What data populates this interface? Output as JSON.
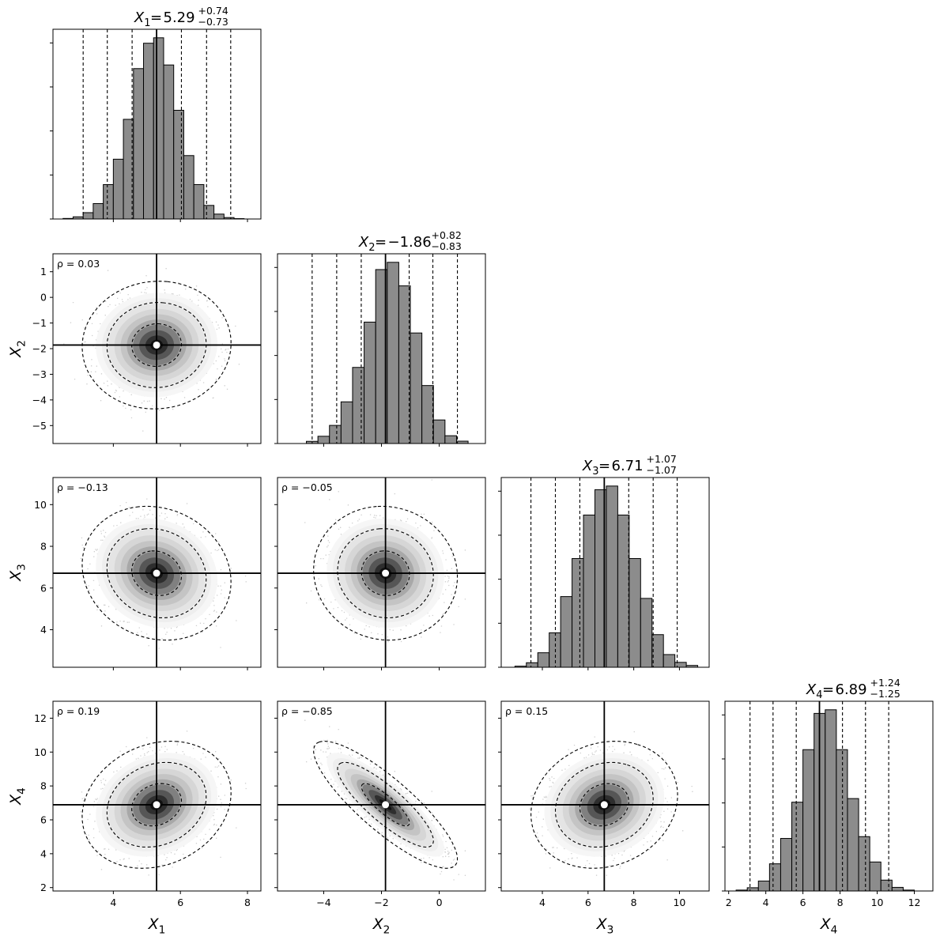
{
  "chart_data": {
    "type": "corner",
    "parameters": [
      {
        "symbol": "X",
        "subscript": "1",
        "median": "5.29",
        "plus": "+0.74",
        "minus": "−0.73",
        "median_value": 5.29,
        "xlim": [
          2.2,
          8.4
        ],
        "ticks": [
          4,
          6,
          8
        ],
        "tick_labels": [
          "4",
          "6",
          "8"
        ],
        "quantile_lines": [
          3.1,
          3.82,
          4.56,
          6.03,
          6.78,
          7.5
        ],
        "hist": [
          0.003,
          0.012,
          0.035,
          0.085,
          0.19,
          0.33,
          0.55,
          0.83,
          0.97,
          1.0,
          0.85,
          0.6,
          0.35,
          0.19,
          0.075,
          0.027,
          0.008,
          0.002
        ],
        "hist_range": [
          2.5,
          7.9
        ]
      },
      {
        "symbol": "X",
        "subscript": "2",
        "median": "−1.86",
        "plus": "+0.82",
        "minus": "−0.83",
        "median_value": -1.86,
        "xlim": [
          -5.6,
          1.6
        ],
        "ticks": [
          -4,
          -2,
          0
        ],
        "tick_labels": [
          "−4",
          "−2",
          "0"
        ],
        "ylim": [
          -5.7,
          1.7
        ],
        "yticks": [
          1,
          0,
          -1,
          -2,
          -3,
          -4,
          -5
        ],
        "ytick_labels": [
          "1",
          "0",
          "−1",
          "−2",
          "−3",
          "−4",
          "−5"
        ],
        "quantile_lines": [
          -4.4,
          -3.55,
          -2.7,
          -1.04,
          -0.22,
          0.63
        ],
        "hist": [
          0.012,
          0.04,
          0.1,
          0.23,
          0.42,
          0.67,
          0.96,
          1.0,
          0.87,
          0.61,
          0.32,
          0.13,
          0.043,
          0.013
        ],
        "hist_range": [
          -4.6,
          1.0
        ]
      },
      {
        "symbol": "X",
        "subscript": "3",
        "median": "6.71",
        "plus": "+1.07",
        "minus": "−1.07",
        "median_value": 6.71,
        "xlim": [
          2.2,
          11.3
        ],
        "ticks": [
          4,
          6,
          8,
          10
        ],
        "tick_labels": [
          "4",
          "6",
          "8",
          "10"
        ],
        "ylim": [
          2.2,
          11.3
        ],
        "yticks": [
          10,
          8,
          6,
          4
        ],
        "ytick_labels": [
          "10",
          "8",
          "6",
          "4"
        ],
        "quantile_lines": [
          3.5,
          4.57,
          5.64,
          7.78,
          8.85,
          9.9
        ],
        "hist": [
          0.006,
          0.025,
          0.08,
          0.19,
          0.39,
          0.6,
          0.84,
          0.98,
          1.0,
          0.84,
          0.6,
          0.38,
          0.18,
          0.07,
          0.027,
          0.01
        ],
        "hist_range": [
          2.8,
          10.8
        ]
      },
      {
        "symbol": "X",
        "subscript": "4",
        "median": "6.89",
        "plus": "+1.24",
        "minus": "−1.25",
        "median_value": 6.89,
        "xlim": [
          1.8,
          13.0
        ],
        "ticks": [
          2,
          4,
          6,
          8,
          10,
          12
        ],
        "tick_labels": [
          "2",
          "4",
          "6",
          "8",
          "10",
          "12"
        ],
        "ylim": [
          1.8,
          13.0
        ],
        "yticks": [
          12,
          10,
          8,
          6,
          4,
          2
        ],
        "ytick_labels": [
          "12",
          "10",
          "8",
          "6",
          "4",
          "2"
        ],
        "quantile_lines": [
          3.15,
          4.39,
          5.64,
          8.13,
          9.37,
          10.62
        ],
        "hist": [
          0.005,
          0.018,
          0.055,
          0.15,
          0.29,
          0.49,
          0.78,
          0.98,
          1.0,
          0.78,
          0.51,
          0.3,
          0.16,
          0.06,
          0.02,
          0.005
        ],
        "hist_range": [
          2.4,
          12.0
        ]
      }
    ],
    "pairs": [
      {
        "row": 1,
        "col": 0,
        "rho": "ρ = 0.03",
        "rho_value": 0.03,
        "sd_x": 0.74,
        "sd_y": 0.83
      },
      {
        "row": 2,
        "col": 0,
        "rho": "ρ = −0.13",
        "rho_value": -0.13,
        "sd_x": 0.74,
        "sd_y": 1.07
      },
      {
        "row": 2,
        "col": 1,
        "rho": "ρ = −0.05",
        "rho_value": -0.05,
        "sd_x": 0.83,
        "sd_y": 1.07
      },
      {
        "row": 3,
        "col": 0,
        "rho": "ρ = 0.19",
        "rho_value": 0.19,
        "sd_x": 0.74,
        "sd_y": 1.25
      },
      {
        "row": 3,
        "col": 1,
        "rho": "ρ = −0.85",
        "rho_value": -0.85,
        "sd_x": 0.83,
        "sd_y": 1.25
      },
      {
        "row": 3,
        "col": 2,
        "rho": "ρ = 0.15",
        "rho_value": 0.15,
        "sd_x": 1.07,
        "sd_y": 1.25
      }
    ],
    "x_axis_labels": [
      {
        "symbol": "X",
        "subscript": "1"
      },
      {
        "symbol": "X",
        "subscript": "2"
      },
      {
        "symbol": "X",
        "subscript": "3"
      },
      {
        "symbol": "X",
        "subscript": "4"
      }
    ],
    "y_axis_labels": [
      {
        "row": 1,
        "symbol": "X",
        "subscript": "2"
      },
      {
        "row": 2,
        "symbol": "X",
        "subscript": "3"
      },
      {
        "row": 3,
        "symbol": "X",
        "subscript": "4"
      }
    ],
    "colors": {
      "hist_fill": "#8c8c8c",
      "edge": "#000000",
      "scatter": "#a8a8a8"
    }
  }
}
